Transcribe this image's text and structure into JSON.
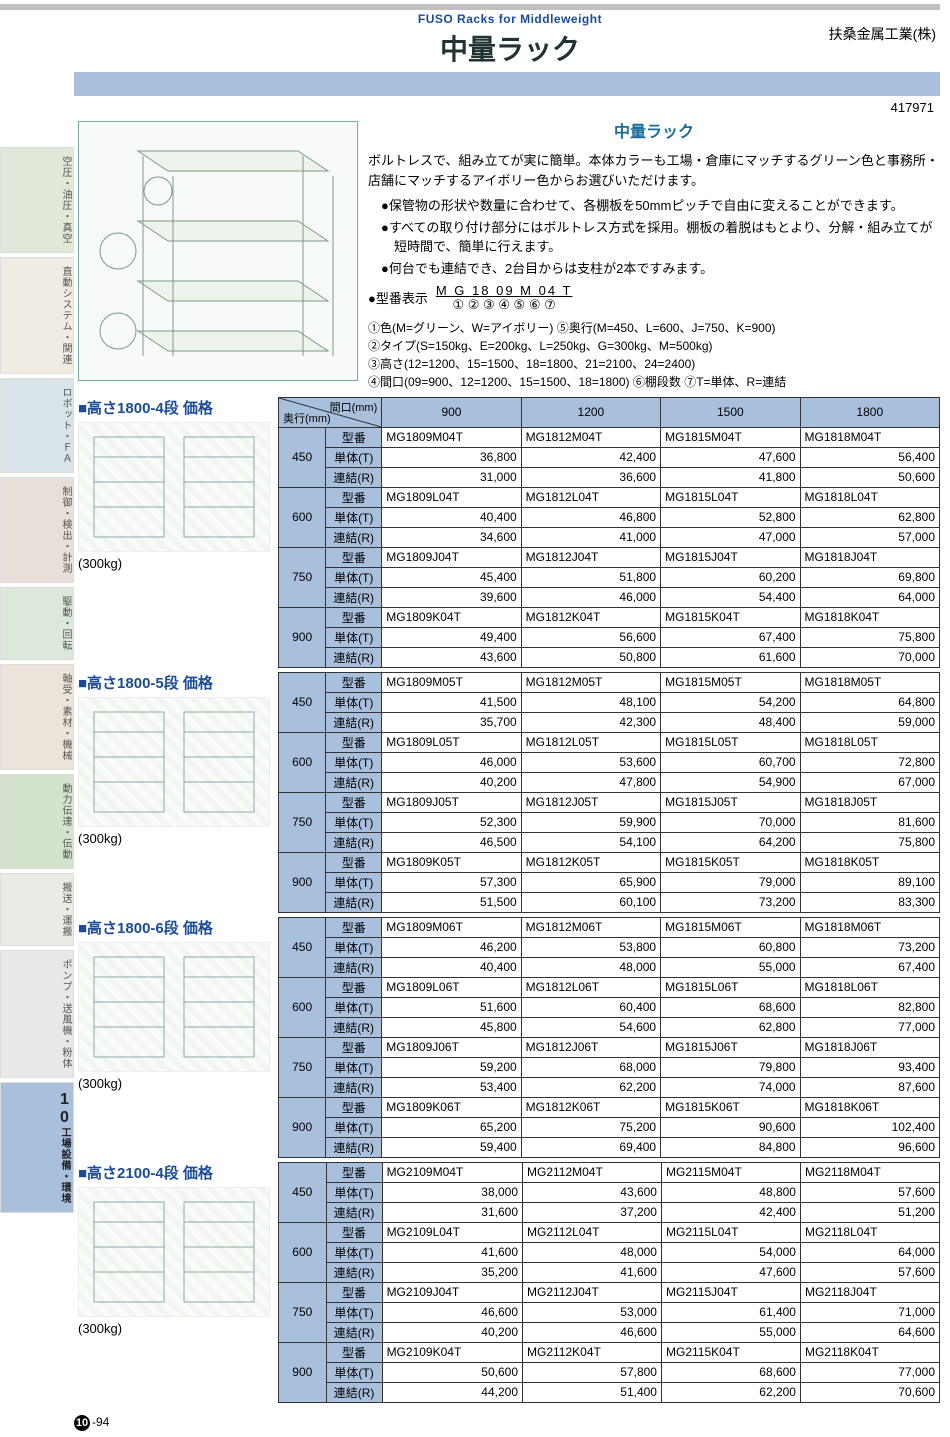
{
  "header": {
    "subtitle_en": "FUSO Racks for Middleweight",
    "title_jp": "中量ラック",
    "company": "扶桑金属工業(株)",
    "code": "417971"
  },
  "sidebar": {
    "tabs": [
      {
        "label": "空圧・油圧・真空",
        "bg": "#e0e8d8"
      },
      {
        "label": "直動システム・関連",
        "bg": "#f0ece4"
      },
      {
        "label": "ロボット・ＦＡ",
        "bg": "#d8e4e8"
      },
      {
        "label": "制御・検出・計測",
        "bg": "#e8e0d8"
      },
      {
        "label": "駆動・回転",
        "bg": "#dde8dc"
      },
      {
        "label": "軸受・素材・機械",
        "bg": "#ece4d8"
      },
      {
        "label": "動力伝達・伝動",
        "bg": "#d4e4cc"
      },
      {
        "label": "搬送・運搬",
        "bg": "#eceae4"
      },
      {
        "label": "ポンプ・送風機・粉体",
        "bg": "#e8e8e8"
      }
    ],
    "active": {
      "num": "10",
      "label": "工場設備・環境"
    }
  },
  "intro": {
    "subhead": "中量ラック",
    "lead": "ボルトレスで、組み立てが実に簡単。本体カラーも工場・倉庫にマッチするグリーン色と事務所・店舗にマッチするアイボリー色からお選びいただけます。",
    "bullets": [
      "●保管物の形状や数量に合わせて、各棚板を50mmピッチで自由に変えることができます。",
      "●すべての取り付け部分にはボルトレス方式を採用。棚板の着脱はもとより、分解・組み立てが短時間で、簡単に行えます。",
      "●何台でも連結でき、2台目からは支柱が2本ですみます。"
    ],
    "model_label": "●型番表示",
    "model_sample": "M G 18 09 M 04 T",
    "model_index": "① ② ③ ④ ⑤ ⑥ ⑦",
    "legend": [
      "①色(M=グリーン、W=アイボリー) ⑤奥行(M=450、L=600、J=750、K=900)",
      "②タイプ(S=150kg、E=200kg、L=250kg、G=300kg、M=500kg)",
      "③高さ(12=1200、15=1500、18=1800、21=2100、24=2400)",
      "④間口(09=900、12=1200、15=1500、18=1800) ⑥棚段数 ⑦T=単体、R=連結"
    ]
  },
  "tableHeader": {
    "corner_top": "間口(mm)",
    "corner_bottom": "奥行(mm)",
    "widths": [
      "900",
      "1200",
      "1500",
      "1800"
    ]
  },
  "rowKinds": [
    "型番",
    "単体(T)",
    "連結(R)"
  ],
  "sections": [
    {
      "title": "■高さ1800-4段 価格",
      "capacity": "(300kg)",
      "depths": [
        {
          "depth": "450",
          "model": [
            "MG1809M04T",
            "MG1812M04T",
            "MG1815M04T",
            "MG1818M04T"
          ],
          "t": [
            "36,800",
            "42,400",
            "47,600",
            "56,400"
          ],
          "r": [
            "31,000",
            "36,600",
            "41,800",
            "50,600"
          ]
        },
        {
          "depth": "600",
          "model": [
            "MG1809L04T",
            "MG1812L04T",
            "MG1815L04T",
            "MG1818L04T"
          ],
          "t": [
            "40,400",
            "46,800",
            "52,800",
            "62,800"
          ],
          "r": [
            "34,600",
            "41,000",
            "47,000",
            "57,000"
          ]
        },
        {
          "depth": "750",
          "model": [
            "MG1809J04T",
            "MG1812J04T",
            "MG1815J04T",
            "MG1818J04T"
          ],
          "t": [
            "45,400",
            "51,800",
            "60,200",
            "69,800"
          ],
          "r": [
            "39,600",
            "46,000",
            "54,400",
            "64,000"
          ]
        },
        {
          "depth": "900",
          "model": [
            "MG1809K04T",
            "MG1812K04T",
            "MG1815K04T",
            "MG1818K04T"
          ],
          "t": [
            "49,400",
            "56,600",
            "67,400",
            "75,800"
          ],
          "r": [
            "43,600",
            "50,800",
            "61,600",
            "70,000"
          ]
        }
      ]
    },
    {
      "title": "■高さ1800-5段 価格",
      "capacity": "(300kg)",
      "depths": [
        {
          "depth": "450",
          "model": [
            "MG1809M05T",
            "MG1812M05T",
            "MG1815M05T",
            "MG1818M05T"
          ],
          "t": [
            "41,500",
            "48,100",
            "54,200",
            "64,800"
          ],
          "r": [
            "35,700",
            "42,300",
            "48,400",
            "59,000"
          ]
        },
        {
          "depth": "600",
          "model": [
            "MG1809L05T",
            "MG1812L05T",
            "MG1815L05T",
            "MG1818L05T"
          ],
          "t": [
            "46,000",
            "53,600",
            "60,700",
            "72,800"
          ],
          "r": [
            "40,200",
            "47,800",
            "54,900",
            "67,000"
          ]
        },
        {
          "depth": "750",
          "model": [
            "MG1809J05T",
            "MG1812J05T",
            "MG1815J05T",
            "MG1818J05T"
          ],
          "t": [
            "52,300",
            "59,900",
            "70,000",
            "81,600"
          ],
          "r": [
            "46,500",
            "54,100",
            "64,200",
            "75,800"
          ]
        },
        {
          "depth": "900",
          "model": [
            "MG1809K05T",
            "MG1812K05T",
            "MG1815K05T",
            "MG1818K05T"
          ],
          "t": [
            "57,300",
            "65,900",
            "79,000",
            "89,100"
          ],
          "r": [
            "51,500",
            "60,100",
            "73,200",
            "83,300"
          ]
        }
      ]
    },
    {
      "title": "■高さ1800-6段 価格",
      "capacity": "(300kg)",
      "depths": [
        {
          "depth": "450",
          "model": [
            "MG1809M06T",
            "MG1812M06T",
            "MG1815M06T",
            "MG1818M06T"
          ],
          "t": [
            "46,200",
            "53,800",
            "60,800",
            "73,200"
          ],
          "r": [
            "40,400",
            "48,000",
            "55,000",
            "67,400"
          ]
        },
        {
          "depth": "600",
          "model": [
            "MG1809L06T",
            "MG1812L06T",
            "MG1815L06T",
            "MG1818L06T"
          ],
          "t": [
            "51,600",
            "60,400",
            "68,600",
            "82,800"
          ],
          "r": [
            "45,800",
            "54,600",
            "62,800",
            "77,000"
          ]
        },
        {
          "depth": "750",
          "model": [
            "MG1809J06T",
            "MG1812J06T",
            "MG1815J06T",
            "MG1818J06T"
          ],
          "t": [
            "59,200",
            "68,000",
            "79,800",
            "93,400"
          ],
          "r": [
            "53,400",
            "62,200",
            "74,000",
            "87,600"
          ]
        },
        {
          "depth": "900",
          "model": [
            "MG1809K06T",
            "MG1812K06T",
            "MG1815K06T",
            "MG1818K06T"
          ],
          "t": [
            "65,200",
            "75,200",
            "90,600",
            "102,400"
          ],
          "r": [
            "59,400",
            "69,400",
            "84,800",
            "96,600"
          ]
        }
      ]
    },
    {
      "title": "■高さ2100-4段 価格",
      "capacity": "(300kg)",
      "depths": [
        {
          "depth": "450",
          "model": [
            "MG2109M04T",
            "MG2112M04T",
            "MG2115M04T",
            "MG2118M04T"
          ],
          "t": [
            "38,000",
            "43,600",
            "48,800",
            "57,600"
          ],
          "r": [
            "31,600",
            "37,200",
            "42,400",
            "51,200"
          ]
        },
        {
          "depth": "600",
          "model": [
            "MG2109L04T",
            "MG2112L04T",
            "MG2115L04T",
            "MG2118L04T"
          ],
          "t": [
            "41,600",
            "48,000",
            "54,000",
            "64,000"
          ],
          "r": [
            "35,200",
            "41,600",
            "47,600",
            "57,600"
          ]
        },
        {
          "depth": "750",
          "model": [
            "MG2109J04T",
            "MG2112J04T",
            "MG2115J04T",
            "MG2118J04T"
          ],
          "t": [
            "46,600",
            "53,000",
            "61,400",
            "71,000"
          ],
          "r": [
            "40,200",
            "46,600",
            "55,000",
            "64,600"
          ]
        },
        {
          "depth": "900",
          "model": [
            "MG2109K04T",
            "MG2112K04T",
            "MG2115K04T",
            "MG2118K04T"
          ],
          "t": [
            "50,600",
            "57,800",
            "68,600",
            "77,000"
          ],
          "r": [
            "44,200",
            "51,400",
            "62,200",
            "70,600"
          ]
        }
      ]
    }
  ],
  "pagefoot": {
    "chapter": "10",
    "page": "-94"
  }
}
